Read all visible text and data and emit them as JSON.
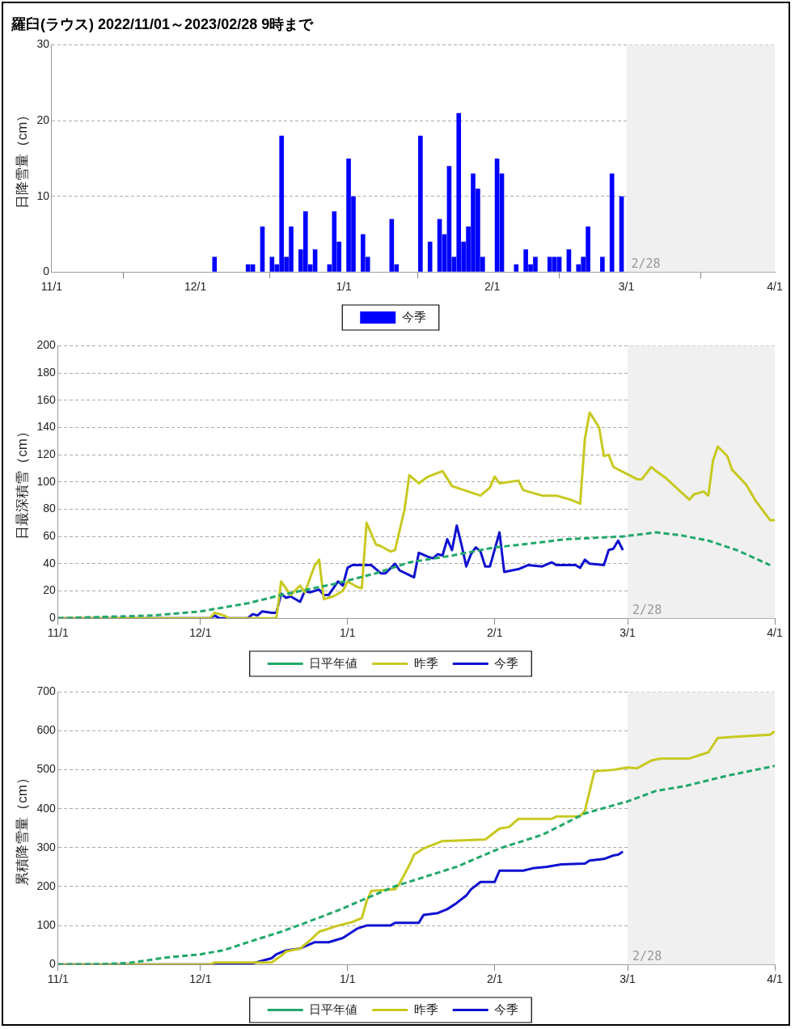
{
  "chart_data": [
    {
      "type": "bar",
      "title": "羅臼(ラウス) 2022/11/01～2023/02/28 9時まで",
      "ylabel": "日降雪量（cm）",
      "x": [
        "2022-12-05",
        "2022-12-12",
        "2022-12-13",
        "2022-12-15",
        "2022-12-17",
        "2022-12-18",
        "2022-12-19",
        "2022-12-20",
        "2022-12-21",
        "2022-12-23",
        "2022-12-24",
        "2022-12-25",
        "2022-12-26",
        "2022-12-29",
        "2022-12-30",
        "2022-12-31",
        "2023-01-02",
        "2023-01-03",
        "2023-01-05",
        "2023-01-06",
        "2023-01-11",
        "2023-01-12",
        "2023-01-17",
        "2023-01-19",
        "2023-01-21",
        "2023-01-22",
        "2023-01-23",
        "2023-01-24",
        "2023-01-25",
        "2023-01-26",
        "2023-01-27",
        "2023-01-28",
        "2023-01-29",
        "2023-01-30",
        "2023-02-02",
        "2023-02-03",
        "2023-02-06",
        "2023-02-08",
        "2023-02-09",
        "2023-02-10",
        "2023-02-13",
        "2023-02-14",
        "2023-02-15",
        "2023-02-17",
        "2023-02-19",
        "2023-02-20",
        "2023-02-21",
        "2023-02-24",
        "2023-02-26",
        "2023-02-28"
      ],
      "series": [
        {
          "name": "今季",
          "color": "#0000ff",
          "values": [
            2,
            1,
            1,
            6,
            2,
            1,
            18,
            2,
            6,
            3,
            8,
            1,
            3,
            1,
            8,
            4,
            15,
            10,
            5,
            2,
            7,
            1,
            18,
            4,
            7,
            5,
            14,
            2,
            21,
            4,
            6,
            13,
            11,
            2,
            15,
            13,
            1,
            3,
            1,
            2,
            2,
            2,
            2,
            3,
            1,
            2,
            6,
            2,
            13,
            10
          ]
        }
      ],
      "xlim": [
        "2022-11-01",
        "2023-04-01"
      ],
      "xticks": [
        {
          "value": "2022-11-01",
          "label": "11/1"
        },
        {
          "value": "2022-12-01",
          "label": "12/1"
        },
        {
          "value": "2023-01-01",
          "label": "1/1"
        },
        {
          "value": "2023-02-01",
          "label": "2/1"
        },
        {
          "value": "2023-03-01",
          "label": "3/1"
        },
        {
          "value": "2023-04-01",
          "label": "4/1"
        }
      ],
      "ylim": [
        0,
        30
      ],
      "yticks": [
        0,
        10,
        20,
        30
      ],
      "bands": [
        {
          "axis": "x",
          "from": "2023-03-01",
          "to": "2023-04-01",
          "label": "2/28",
          "color": "#f0f0f0"
        }
      ],
      "grid": "y",
      "legend": "bottom"
    },
    {
      "type": "line",
      "ylabel": "日最深積雪（cm）",
      "series": [
        {
          "name": "日平年値",
          "color": "#22a86a",
          "line_style": "dashed",
          "x": [
            "2022-11-01",
            "2022-11-11",
            "2022-11-21",
            "2022-12-01",
            "2022-12-11",
            "2022-12-18",
            "2022-12-29",
            "2023-01-07",
            "2023-01-14",
            "2023-01-23",
            "2023-02-01",
            "2023-02-09",
            "2023-02-16",
            "2023-02-28",
            "2023-03-07",
            "2023-03-12",
            "2023-03-18",
            "2023-03-24",
            "2023-03-31"
          ],
          "values": [
            0,
            1,
            2,
            5,
            11,
            17,
            25,
            33,
            41,
            46,
            52,
            55,
            58,
            60,
            63,
            61,
            57,
            50,
            39
          ]
        },
        {
          "name": "昨季",
          "color": "#c8c820",
          "x": [
            "2022-11-01",
            "2022-12-03",
            "2022-12-04",
            "2022-12-06",
            "2022-12-07",
            "2022-12-17",
            "2022-12-18",
            "2022-12-19",
            "2022-12-20",
            "2022-12-22",
            "2022-12-23",
            "2022-12-25",
            "2022-12-26",
            "2022-12-27",
            "2022-12-29",
            "2022-12-31",
            "2023-01-01",
            "2023-01-03",
            "2023-01-04",
            "2023-01-05",
            "2023-01-07",
            "2023-01-08",
            "2023-01-10",
            "2023-01-11",
            "2023-01-13",
            "2023-01-14",
            "2023-01-16",
            "2023-01-18",
            "2023-01-21",
            "2023-01-23",
            "2023-01-29",
            "2023-01-31",
            "2023-02-01",
            "2023-02-02",
            "2023-02-06",
            "2023-02-07",
            "2023-02-11",
            "2023-02-14",
            "2023-02-17",
            "2023-02-19",
            "2023-02-20",
            "2023-02-21",
            "2023-02-23",
            "2023-02-24",
            "2023-02-25",
            "2023-02-26",
            "2023-03-03",
            "2023-03-04",
            "2023-03-06",
            "2023-03-07",
            "2023-03-09",
            "2023-03-14",
            "2023-03-15",
            "2023-03-17",
            "2023-03-18",
            "2023-03-19",
            "2023-03-20",
            "2023-03-22",
            "2023-03-23",
            "2023-03-26",
            "2023-03-28",
            "2023-03-31",
            "2023-04-01"
          ],
          "values": [
            0,
            0,
            4,
            2,
            0,
            0,
            27,
            22,
            17,
            24,
            19,
            38,
            43,
            14,
            16,
            20,
            27,
            23,
            22,
            70,
            54,
            53,
            49,
            50,
            80,
            105,
            99,
            104,
            108,
            97,
            90,
            96,
            104,
            99,
            101,
            94,
            90,
            90,
            87,
            84,
            132,
            151,
            140,
            119,
            120,
            111,
            102,
            102,
            111,
            108,
            103,
            87,
            91,
            93,
            90,
            116,
            126,
            119,
            109,
            98,
            86,
            72,
            72
          ]
        },
        {
          "name": "今季",
          "color": "#1010d0",
          "x": [
            "2022-11-01",
            "2022-12-03",
            "2022-12-04",
            "2022-12-05",
            "2022-12-11",
            "2022-12-12",
            "2022-12-13",
            "2022-12-14",
            "2022-12-16",
            "2022-12-17",
            "2022-12-18",
            "2022-12-19",
            "2022-12-20",
            "2022-12-22",
            "2022-12-23",
            "2022-12-24",
            "2022-12-26",
            "2022-12-27",
            "2022-12-28",
            "2022-12-30",
            "2022-12-31",
            "2023-01-01",
            "2023-01-02",
            "2023-01-06",
            "2023-01-08",
            "2023-01-09",
            "2023-01-11",
            "2023-01-12",
            "2023-01-15",
            "2023-01-16",
            "2023-01-18",
            "2023-01-19",
            "2023-01-20",
            "2023-01-21",
            "2023-01-22",
            "2023-01-23",
            "2023-01-24",
            "2023-01-25",
            "2023-01-26",
            "2023-01-27",
            "2023-01-28",
            "2023-01-29",
            "2023-01-30",
            "2023-01-31",
            "2023-02-02",
            "2023-02-03",
            "2023-02-06",
            "2023-02-08",
            "2023-02-11",
            "2023-02-13",
            "2023-02-14",
            "2023-02-18",
            "2023-02-19",
            "2023-02-20",
            "2023-02-21",
            "2023-02-24",
            "2023-02-25",
            "2023-02-26",
            "2023-02-27",
            "2023-02-28"
          ],
          "values": [
            0,
            0,
            2,
            0,
            0,
            3,
            2,
            5,
            4,
            4,
            18,
            15,
            16,
            12,
            20,
            19,
            21,
            17,
            17,
            27,
            24,
            37,
            39,
            39,
            33,
            33,
            40,
            35,
            30,
            48,
            45,
            44,
            47,
            46,
            58,
            50,
            68,
            54,
            38,
            47,
            52,
            49,
            38,
            38,
            63,
            34,
            36,
            39,
            38,
            41,
            39,
            39,
            37,
            43,
            40,
            39,
            50,
            51,
            57,
            50
          ]
        }
      ],
      "xlim": [
        "2022-11-01",
        "2023-04-01"
      ],
      "xticks": [
        {
          "value": "2022-11-01",
          "label": "11/1"
        },
        {
          "value": "2022-12-01",
          "label": "12/1"
        },
        {
          "value": "2023-01-01",
          "label": "1/1"
        },
        {
          "value": "2023-02-01",
          "label": "2/1"
        },
        {
          "value": "2023-03-01",
          "label": "3/1"
        },
        {
          "value": "2023-04-01",
          "label": "4/1"
        }
      ],
      "ylim": [
        0,
        200
      ],
      "yticks": [
        0,
        20,
        40,
        60,
        80,
        100,
        120,
        140,
        160,
        180,
        200
      ],
      "bands": [
        {
          "axis": "x",
          "from": "2023-03-01",
          "to": "2023-04-01",
          "label": "2/28",
          "color": "#f0f0f0"
        }
      ],
      "grid": "y",
      "legend": "bottom",
      "marker": "none"
    },
    {
      "type": "line",
      "ylabel": "累積降雪量（cm）",
      "series": [
        {
          "name": "日平年値",
          "color": "#22a86a",
          "line_style": "dashed",
          "x": [
            "2022-11-01",
            "2022-11-11",
            "2022-11-16",
            "2022-11-24",
            "2022-12-01",
            "2022-12-06",
            "2022-12-12",
            "2022-12-18",
            "2022-12-24",
            "2022-12-30",
            "2023-01-05",
            "2023-01-11",
            "2023-01-17",
            "2023-01-24",
            "2023-02-02",
            "2023-02-11",
            "2023-02-20",
            "2023-03-01",
            "2023-03-07",
            "2023-03-13",
            "2023-03-22",
            "2023-04-01"
          ],
          "values": [
            0,
            1,
            4,
            18,
            26,
            37,
            61,
            84,
            111,
            139,
            170,
            201,
            224,
            251,
            298,
            333,
            388,
            419,
            446,
            458,
            485,
            510
          ]
        },
        {
          "name": "昨季",
          "color": "#c8c820",
          "x": [
            "2022-11-01",
            "2022-12-03",
            "2022-12-04",
            "2022-12-16",
            "2022-12-18",
            "2022-12-19",
            "2022-12-22",
            "2022-12-24",
            "2022-12-26",
            "2022-12-30",
            "2023-01-02",
            "2023-01-04",
            "2023-01-05",
            "2023-01-06",
            "2023-01-11",
            "2023-01-12",
            "2023-01-14",
            "2023-01-15",
            "2023-01-17",
            "2023-01-21",
            "2023-01-30",
            "2023-02-02",
            "2023-02-04",
            "2023-02-06",
            "2023-02-13",
            "2023-02-14",
            "2023-02-19",
            "2023-02-20",
            "2023-02-22",
            "2023-02-26",
            "2023-03-01",
            "2023-03-03",
            "2023-03-06",
            "2023-03-08",
            "2023-03-14",
            "2023-03-18",
            "2023-03-20",
            "2023-03-25",
            "2023-03-31",
            "2023-04-01"
          ],
          "values": [
            0,
            0,
            5,
            5,
            22,
            33,
            41,
            61,
            84,
            100,
            109,
            119,
            162,
            189,
            193,
            209,
            255,
            282,
            298,
            317,
            321,
            349,
            353,
            374,
            374,
            380,
            381,
            395,
            496,
            500,
            506,
            504,
            524,
            529,
            529,
            545,
            582,
            586,
            590,
            599
          ]
        },
        {
          "name": "今季",
          "color": "#1010d0",
          "x": [
            "2022-11-01",
            "2022-12-11",
            "2022-12-13",
            "2022-12-16",
            "2022-12-17",
            "2022-12-19",
            "2022-12-22",
            "2022-12-25",
            "2022-12-28",
            "2022-12-31",
            "2023-01-03",
            "2023-01-05",
            "2023-01-10",
            "2023-01-11",
            "2023-01-16",
            "2023-01-17",
            "2023-01-20",
            "2023-01-22",
            "2023-01-24",
            "2023-01-26",
            "2023-01-27",
            "2023-01-29",
            "2023-02-01",
            "2023-02-02",
            "2023-02-07",
            "2023-02-09",
            "2023-02-12",
            "2023-02-15",
            "2023-02-20",
            "2023-02-21",
            "2023-02-24",
            "2023-02-26",
            "2023-02-27",
            "2023-02-28"
          ],
          "values": [
            0,
            0,
            6,
            16,
            26,
            36,
            41,
            57,
            57,
            68,
            92,
            100,
            100,
            107,
            107,
            127,
            132,
            142,
            158,
            177,
            193,
            212,
            212,
            241,
            241,
            247,
            251,
            257,
            259,
            267,
            271,
            280,
            282,
            290
          ]
        }
      ],
      "xlim": [
        "2022-11-01",
        "2023-04-01"
      ],
      "xticks": [
        {
          "value": "2022-11-01",
          "label": "11/1"
        },
        {
          "value": "2022-12-01",
          "label": "12/1"
        },
        {
          "value": "2023-01-01",
          "label": "1/1"
        },
        {
          "value": "2023-02-01",
          "label": "2/1"
        },
        {
          "value": "2023-03-01",
          "label": "3/1"
        },
        {
          "value": "2023-04-01",
          "label": "4/1"
        }
      ],
      "ylim": [
        0,
        700
      ],
      "yticks": [
        0,
        100,
        200,
        300,
        400,
        500,
        600,
        700
      ],
      "bands": [
        {
          "axis": "x",
          "from": "2023-03-01",
          "to": "2023-04-01",
          "label": "2/28",
          "color": "#f0f0f0"
        }
      ],
      "grid": "y",
      "legend": "bottom",
      "marker": "none"
    }
  ]
}
